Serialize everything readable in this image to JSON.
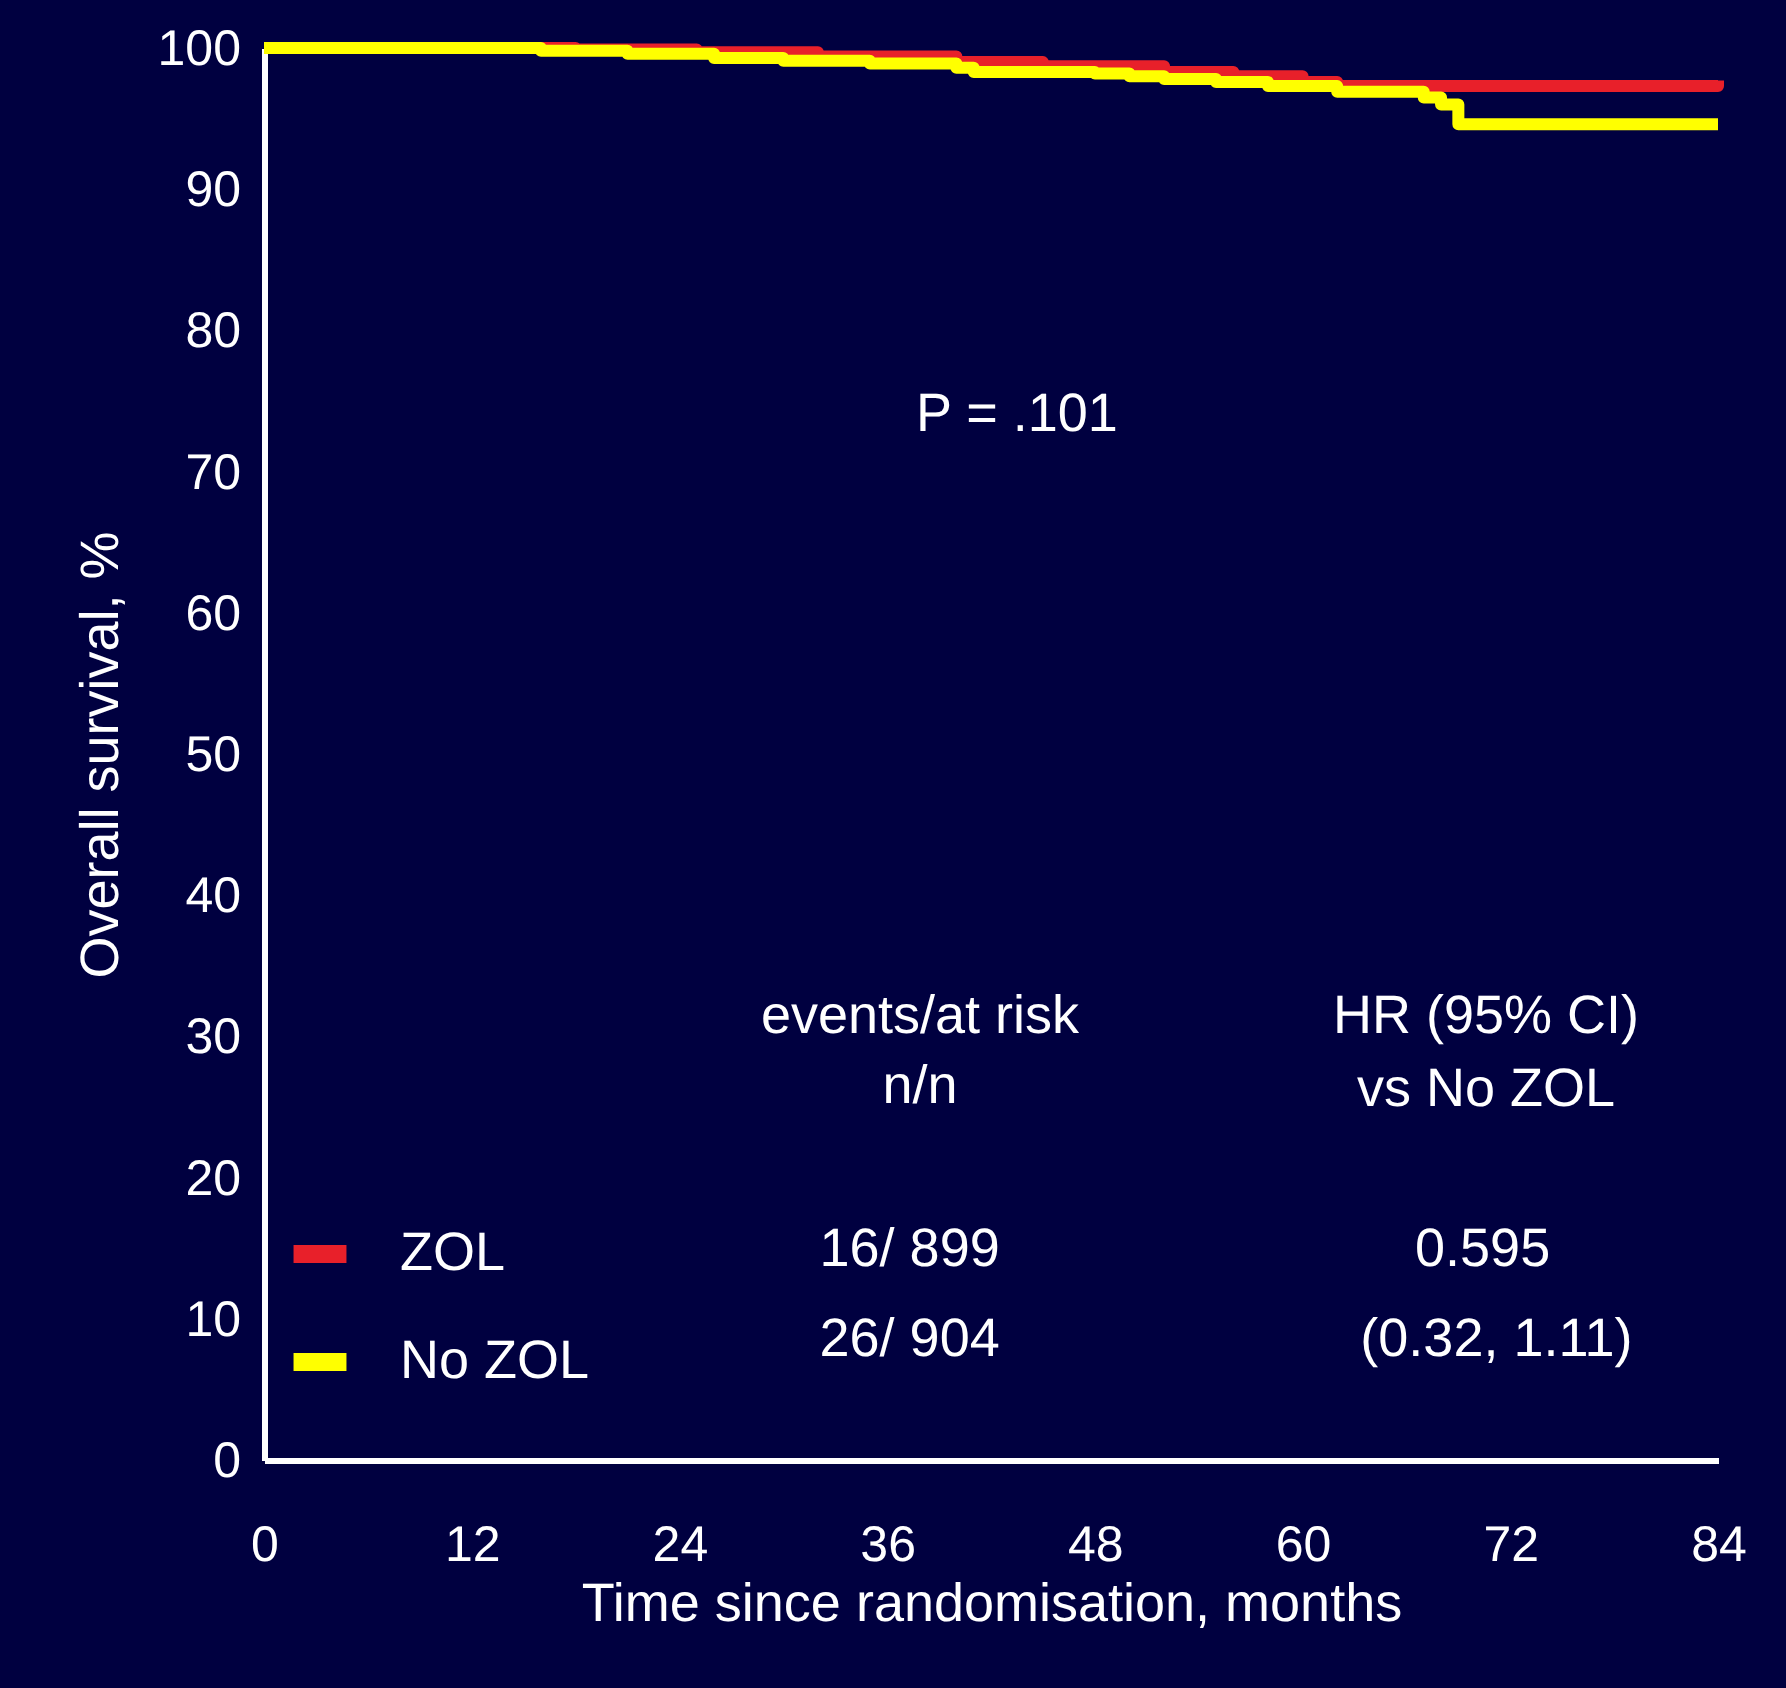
{
  "chart_data": {
    "type": "step",
    "xlabel": "Time since randomisation, months",
    "ylabel": "Overall survival, %",
    "xlim": [
      0,
      84
    ],
    "xticks": [
      0,
      12,
      24,
      36,
      48,
      60,
      72,
      84
    ],
    "ylim": [
      0,
      100
    ],
    "yticks": [
      0,
      10,
      20,
      30,
      40,
      50,
      60,
      70,
      80,
      90,
      100
    ],
    "grid": false,
    "legend": "bottom left",
    "annotations": [
      "P = .101",
      "events/at risk",
      "n/n",
      "HR (95% CI)",
      "vs No ZOL",
      "16/ 899",
      "26/ 904",
      "0.595",
      "(0.32, 1.11)"
    ],
    "series": [
      {
        "name": "ZOL",
        "color": "#e8202a",
        "x": [
          0,
          18,
          25,
          32,
          40,
          45,
          52,
          56,
          60,
          62,
          84
        ],
        "values": [
          100,
          99.9,
          99.7,
          99.4,
          99.0,
          98.7,
          98.3,
          98.0,
          97.6,
          97.3,
          97.7
        ]
      },
      {
        "name": "No ZOL",
        "color": "#ffff00",
        "x": [
          0,
          16,
          21,
          26,
          30,
          35,
          40,
          41,
          48,
          50,
          52,
          55,
          58,
          62,
          67,
          68,
          69,
          84
        ],
        "values": [
          100,
          99.8,
          99.6,
          99.3,
          99.1,
          98.9,
          98.6,
          98.3,
          98.2,
          98.0,
          97.8,
          97.6,
          97.3,
          96.9,
          96.5,
          96.0,
          94.6,
          94.6
        ]
      }
    ]
  }
}
